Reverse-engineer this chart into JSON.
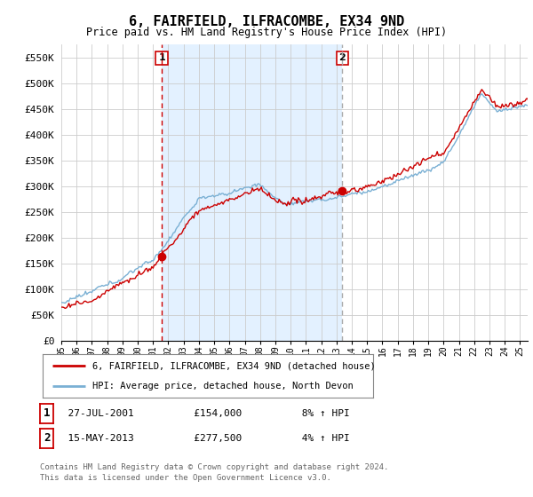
{
  "title": "6, FAIRFIELD, ILFRACOMBE, EX34 9ND",
  "subtitle": "Price paid vs. HM Land Registry's House Price Index (HPI)",
  "ylabel_ticks": [
    "£0",
    "£50K",
    "£100K",
    "£150K",
    "£200K",
    "£250K",
    "£300K",
    "£350K",
    "£400K",
    "£450K",
    "£500K",
    "£550K"
  ],
  "ytick_values": [
    0,
    50000,
    100000,
    150000,
    200000,
    250000,
    300000,
    350000,
    400000,
    450000,
    500000,
    550000
  ],
  "ylim": [
    0,
    575000
  ],
  "xlim_start": 1995.0,
  "xlim_end": 2025.5,
  "purchase1": {
    "date_num": 2001.57,
    "price": 154000,
    "label": "1",
    "date_str": "27-JUL-2001",
    "pct": "8%"
  },
  "purchase2": {
    "date_num": 2013.37,
    "price": 277500,
    "label": "2",
    "date_str": "15-MAY-2013",
    "pct": "4%"
  },
  "line_color_price": "#cc0000",
  "line_color_hpi": "#7ab0d4",
  "shade_color": "#ddeeff",
  "grid_color": "#cccccc",
  "background_color": "#ffffff",
  "legend_label_price": "6, FAIRFIELD, ILFRACOMBE, EX34 9ND (detached house)",
  "legend_label_hpi": "HPI: Average price, detached house, North Devon",
  "footer1": "Contains HM Land Registry data © Crown copyright and database right 2024.",
  "footer2": "This data is licensed under the Open Government Licence v3.0.",
  "xtick_years": [
    "95",
    "96",
    "97",
    "98",
    "99",
    "00",
    "01",
    "02",
    "03",
    "04",
    "05",
    "06",
    "07",
    "08",
    "09",
    "10",
    "11",
    "12",
    "13",
    "14",
    "15",
    "16",
    "17",
    "18",
    "19",
    "20",
    "21",
    "22",
    "23",
    "24",
    "25"
  ],
  "xtick_vals": [
    1995,
    1996,
    1997,
    1998,
    1999,
    2000,
    2001,
    2002,
    2003,
    2004,
    2005,
    2006,
    2007,
    2008,
    2009,
    2010,
    2011,
    2012,
    2013,
    2014,
    2015,
    2016,
    2017,
    2018,
    2019,
    2020,
    2021,
    2022,
    2023,
    2024,
    2025
  ]
}
